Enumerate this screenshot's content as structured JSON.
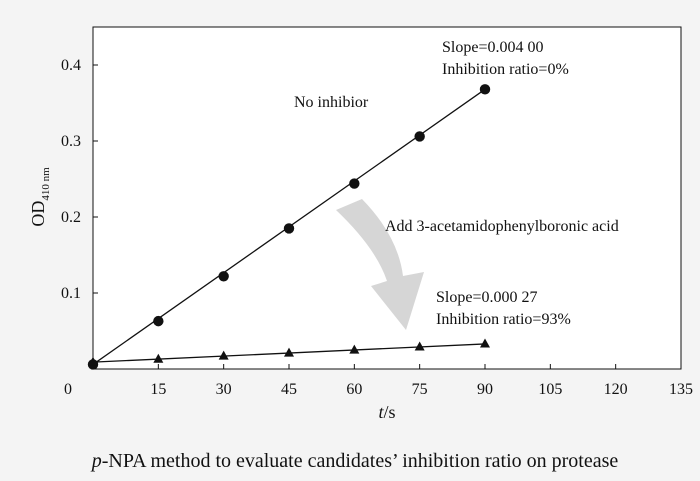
{
  "chart_data": {
    "type": "scatter",
    "caption": {
      "italic": "p",
      "rest": "-NPA method to evaluate candidates’ inhibition ratio on protease"
    },
    "xlabel": {
      "italic": "t",
      "unit": "/s"
    },
    "ylabel": {
      "main": "OD",
      "subscript": "410 nm"
    },
    "xlim": [
      0,
      135
    ],
    "ylim": [
      0,
      0.45
    ],
    "x_ticks": [
      15,
      30,
      45,
      60,
      75,
      90,
      105,
      120,
      135
    ],
    "y_ticks": [
      0.1,
      0.2,
      0.3,
      0.4
    ],
    "origin_label": "0",
    "series": [
      {
        "marker": "circle",
        "x": [
          0,
          15,
          30,
          45,
          60,
          75,
          90
        ],
        "y": [
          0.006,
          0.063,
          0.122,
          0.185,
          0.244,
          0.306,
          0.368
        ]
      },
      {
        "marker": "triangle",
        "x": [
          0,
          15,
          30,
          45,
          60,
          75,
          90
        ],
        "y": [
          0.009,
          0.013,
          0.017,
          0.021,
          0.025,
          0.029,
          0.033
        ]
      }
    ],
    "annotations": {
      "no_inhibitor": "No inhibior",
      "top_slope": "Slope=0.004 00",
      "top_ratio": "Inhibition ratio=0%",
      "add_label": "Add 3-acetamidophenylboronic acid",
      "bottom_slope": "Slope=0.000 27",
      "bottom_ratio": "Inhibition ratio=93%"
    },
    "colors": {
      "marks": "#111111",
      "arrow": "#d6d6d6",
      "background": "#f4f4f4"
    }
  }
}
